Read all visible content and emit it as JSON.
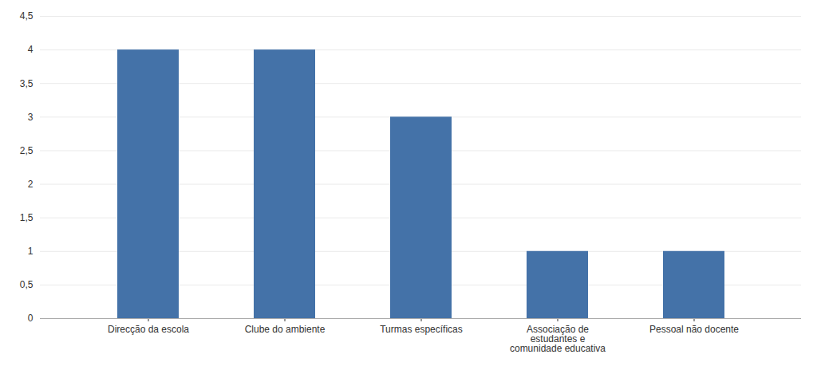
{
  "chart_data": {
    "type": "bar",
    "categories": [
      "Direcção da escola",
      "Clube do ambiente",
      "Turmas específicas",
      "Associação de\nestudantes e\ncomunidade educativa",
      "Pessoal não docente"
    ],
    "values": [
      4,
      4,
      3,
      1,
      1
    ],
    "color": "#4472a8",
    "ylim": [
      0,
      4.5
    ],
    "yticks": [
      0,
      {
        "value": 0.5,
        "label": "0,5"
      },
      1,
      {
        "value": 1.5,
        "label": "1,5"
      },
      2,
      {
        "value": 2.5,
        "label": "2,5"
      },
      3,
      {
        "value": 3.5,
        "label": "3,5"
      },
      4,
      {
        "value": 4.5,
        "label": "4,5"
      }
    ],
    "grid": true
  }
}
